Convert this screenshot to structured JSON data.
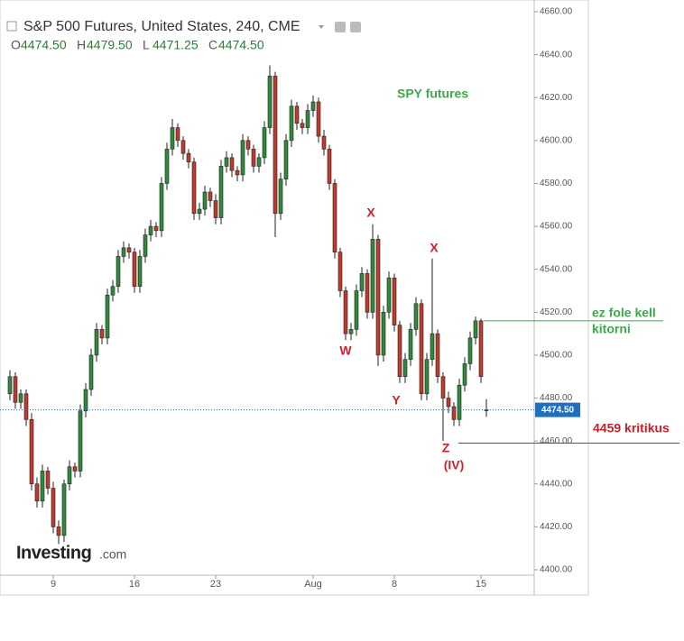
{
  "chart_data": {
    "type": "candlestick",
    "title": "S&P 500 Futures, United States, 240, CME",
    "ohlc_legend": [
      {
        "label": "O",
        "text": "4474.50"
      },
      {
        "label": "H",
        "text": "4479.50"
      },
      {
        "label": "L",
        "text": "4471.25"
      },
      {
        "label": "C",
        "text": "4474.50"
      }
    ],
    "logo": "Investing",
    "logo_suffix": ".com",
    "up_color": "#2f8a3a",
    "down_color": "#c0392b",
    "categories": [
      null,
      null,
      null,
      null,
      null,
      null,
      null,
      null,
      "9",
      null,
      null,
      null,
      null,
      null,
      null,
      null,
      null,
      null,
      null,
      null,
      null,
      null,
      null,
      "16",
      null,
      null,
      null,
      null,
      null,
      null,
      null,
      null,
      null,
      null,
      null,
      null,
      null,
      null,
      "23",
      null,
      null,
      null,
      null,
      null,
      null,
      null,
      null,
      null,
      null,
      null,
      null,
      null,
      null,
      null,
      null,
      null,
      "Aug",
      null,
      null,
      null,
      null,
      null,
      null,
      null,
      null,
      null,
      null,
      null,
      null,
      null,
      null,
      "8",
      null,
      null,
      null,
      null,
      null,
      null,
      null,
      null,
      null,
      null,
      null,
      null,
      null,
      null,
      null,
      "15",
      null
    ],
    "open": [
      4482,
      4490,
      4478,
      4482,
      4470,
      4440,
      4432,
      4446,
      4438,
      4420,
      4416,
      4440,
      4448,
      4446,
      4474,
      4484,
      4500,
      4512,
      4508,
      4528,
      4532,
      4546,
      4550,
      4548,
      4532,
      4546,
      4556,
      4560,
      4558,
      4580,
      4596,
      4606,
      4600,
      4594,
      4590,
      4566,
      4568,
      4576,
      4572,
      4564,
      4588,
      4592,
      4586,
      4584,
      4600,
      4596,
      4588,
      4592,
      4606,
      4630,
      4566,
      4582,
      4600,
      4616,
      4608,
      4606,
      4614,
      4618,
      4602,
      4596,
      4580,
      4548,
      4530,
      4510,
      4512,
      4530,
      4538,
      4520,
      4554,
      4500,
      4520,
      4536,
      4514,
      4490,
      4498,
      4512,
      4524,
      4482,
      4498,
      4510,
      4490,
      4480,
      4476,
      4470,
      4486,
      4496,
      4508,
      4516,
      4474.5
    ],
    "high": [
      4493,
      4492,
      4484,
      4484,
      4473,
      4443,
      4449,
      4448,
      4441,
      4423,
      4442,
      4451,
      4450,
      4477,
      4487,
      4503,
      4515,
      4514,
      4531,
      4535,
      4549,
      4553,
      4552,
      4550,
      4549,
      4559,
      4563,
      4562,
      4583,
      4599,
      4610,
      4608,
      4602,
      4596,
      4592,
      4571,
      4579,
      4578,
      4575,
      4591,
      4595,
      4594,
      4588,
      4603,
      4602,
      4598,
      4594,
      4609,
      4635,
      4632,
      4585,
      4603,
      4619,
      4618,
      4610,
      4617,
      4621,
      4620,
      4605,
      4598,
      4582,
      4550,
      4532,
      4515,
      4533,
      4541,
      4540,
      4561,
      4556,
      4523,
      4539,
      4538,
      4516,
      4501,
      4515,
      4527,
      4526,
      4501,
      4545,
      4512,
      4492,
      4483,
      4478,
      4489,
      4499,
      4511,
      4518,
      4517,
      4479.5
    ],
    "low": [
      4479,
      4475,
      4475,
      4467,
      4437,
      4429,
      4429,
      4435,
      4417,
      4412,
      4413,
      4437,
      4443,
      4443,
      4471,
      4481,
      4497,
      4505,
      4505,
      4525,
      4529,
      4543,
      4545,
      4529,
      4529,
      4543,
      4553,
      4555,
      4555,
      4577,
      4593,
      4597,
      4591,
      4587,
      4563,
      4563,
      4565,
      4569,
      4561,
      4561,
      4585,
      4583,
      4581,
      4581,
      4593,
      4585,
      4585,
      4589,
      4603,
      4555,
      4563,
      4579,
      4597,
      4605,
      4603,
      4603,
      4611,
      4599,
      4593,
      4577,
      4545,
      4527,
      4507,
      4507,
      4509,
      4527,
      4517,
      4517,
      4495,
      4497,
      4517,
      4511,
      4487,
      4487,
      4495,
      4509,
      4479,
      4479,
      4495,
      4487,
      4460,
      4473,
      4467,
      4467,
      4483,
      4493,
      4505,
      4487,
      4471.25
    ],
    "close": [
      4490,
      4478,
      4482,
      4470,
      4440,
      4432,
      4446,
      4438,
      4420,
      4416,
      4440,
      4448,
      4446,
      4474,
      4484,
      4500,
      4512,
      4508,
      4528,
      4532,
      4546,
      4550,
      4548,
      4532,
      4546,
      4556,
      4560,
      4558,
      4580,
      4596,
      4606,
      4600,
      4594,
      4590,
      4566,
      4568,
      4576,
      4572,
      4564,
      4588,
      4592,
      4586,
      4584,
      4600,
      4596,
      4588,
      4592,
      4606,
      4630,
      4566,
      4582,
      4600,
      4616,
      4608,
      4606,
      4614,
      4618,
      4602,
      4596,
      4580,
      4548,
      4530,
      4510,
      4512,
      4530,
      4538,
      4520,
      4554,
      4500,
      4520,
      4536,
      4514,
      4490,
      4498,
      4512,
      4524,
      4482,
      4498,
      4510,
      4490,
      4480,
      4476,
      4470,
      4486,
      4496,
      4508,
      4516,
      4490,
      4474.5
    ],
    "ylim": [
      4400,
      4660
    ],
    "yticks": [
      {
        "value": 4400,
        "label": "4400.00"
      },
      {
        "value": 4420,
        "label": "4420.00"
      },
      {
        "value": 4440,
        "label": "4440.00"
      },
      {
        "value": 4460,
        "label": "4460.00"
      },
      {
        "value": 4480,
        "label": "4480.00"
      },
      {
        "value": 4500,
        "label": "4500.00"
      },
      {
        "value": 4520,
        "label": "4520.00"
      },
      {
        "value": 4540,
        "label": "4540.00"
      },
      {
        "value": 4560,
        "label": "4560.00"
      },
      {
        "value": 4580,
        "label": "4580.00"
      },
      {
        "value": 4600,
        "label": "4600.00"
      },
      {
        "value": 4620,
        "label": "4620.00"
      },
      {
        "value": 4640,
        "label": "4640.00"
      },
      {
        "value": 4660,
        "label": "4660.00"
      }
    ],
    "last_price": {
      "value": 4474.5,
      "label": "4474.50",
      "color": "#1f6fc0"
    },
    "level_lines": [
      {
        "value": 4516,
        "color": "#3aaa4a"
      },
      {
        "value": 4459,
        "color": "#c8202a"
      }
    ],
    "annotations": [
      {
        "text": "SPY futures",
        "color": "#3aaa4a"
      },
      {
        "text": "X",
        "color": "#d0202a"
      },
      {
        "text": "X",
        "color": "#d0202a"
      },
      {
        "text": "W",
        "color": "#d0202a"
      },
      {
        "text": "Y",
        "color": "#d0202a"
      },
      {
        "text": "Z",
        "color": "#d0202a"
      },
      {
        "text": "(IV)",
        "color": "#d0202a"
      },
      {
        "text": "ez fole kell",
        "color": "#3aaa4a"
      },
      {
        "text": "kitorni",
        "color": "#3aaa4a"
      },
      {
        "text": "4459 kritikus",
        "color": "#c8202a"
      }
    ]
  }
}
